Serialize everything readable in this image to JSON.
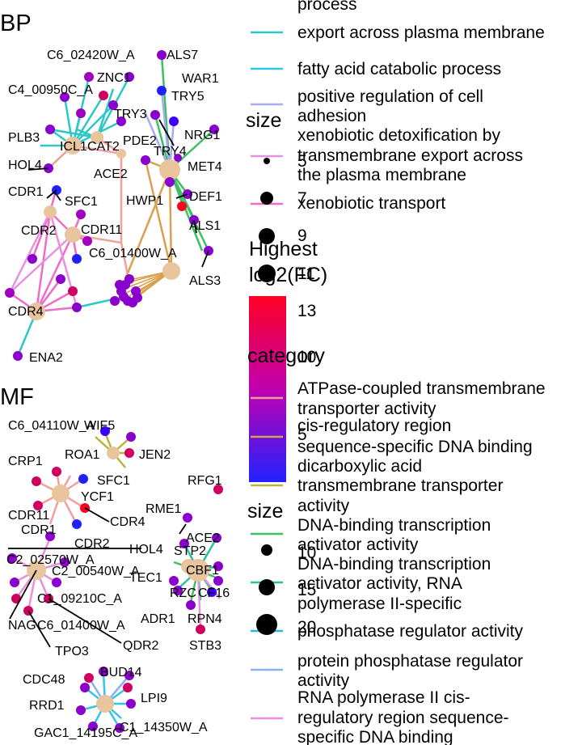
{
  "panels": {
    "bp": "BP",
    "mf": "MF"
  },
  "bp_nodes": {
    "c6_02420w": "C6_02420W_A",
    "als7": "ALS7",
    "c4_00950c": "C4_00950C_A",
    "znc1": "ZNC1",
    "war1": "WAR1",
    "try5": "TRY5",
    "try3": "TRY3",
    "plb3": "PLB3",
    "icl1": "ICL1",
    "cat2": "CAT2",
    "pde2": "PDE2",
    "nrg1": "NRG1",
    "try4": "TRY4",
    "hol4": "HOL4",
    "ace2": "ACE2",
    "met4": "MET4",
    "cdr1": "CDR1",
    "sfc1": "SFC1",
    "hwp1": "HWP1",
    "def1": "DEF1",
    "als1": "ALS1",
    "cdr2": "CDR2",
    "cdr11": "CDR11",
    "c6_01400w": "C6_01400W_A",
    "als3": "ALS3",
    "cdr4": "CDR4",
    "ena2": "ENA2"
  },
  "mf_nodes": {
    "c6_04110w": "C6_04110W_A",
    "wif5": "WIF5",
    "roa1": "ROA1",
    "jen2": "JEN2",
    "crp1": "CRP1",
    "sfc1": "SFC1",
    "ycf1": "YCF1",
    "rfg1": "RFG1",
    "cdr4": "CDR4",
    "cdr11": "CDR11",
    "rme1": "RME1",
    "cdr1": "CDR1",
    "ace2": "ACE2",
    "cdr2": "CDR2",
    "hol4": "HOL4",
    "stp2": "STP2",
    "c2_02570w": "C2_02570W_A",
    "cbf1": "CBF1",
    "c2_00540w": "C2_00540W_A",
    "tec1": "TEC1",
    "rzc": "RZC",
    "cf16": "CF16",
    "c1_09210c": "C1_09210C_A",
    "adr1": "ADR1",
    "rpn4": "RPN4",
    "nag": "NAG",
    "c6_01400w": "C6_01400W_A",
    "stb3": "STB3",
    "tpo3": "TPO3",
    "qdr2": "QDR2",
    "cdc48": "CDC48",
    "bud14": "BUD14",
    "lpi9": "LPI9",
    "rrd1": "RRD1",
    "gac1": "GAC1_14195C_A",
    "c1_14350w": "C1_14350W_A"
  },
  "legend": {
    "bp_category_items": [
      {
        "label_lines": [
          "process"
        ],
        "color": "#f3a099"
      },
      {
        "label_lines": [
          "export across plasma membrane"
        ],
        "color": "#2bc8c8"
      },
      {
        "label_lines": [
          "fatty acid catabolic process"
        ],
        "color": "#33c4e6"
      },
      {
        "label_lines": [
          "positive regulation of cell",
          "adhesion"
        ],
        "color": "#a6abf2"
      },
      {
        "label_lines": [
          "xenobiotic detoxification by",
          "transmembrane export across",
          "the plasma membrane"
        ],
        "color": "#e890e0"
      },
      {
        "label_lines": [
          "xenobiotic transport"
        ],
        "color": "#f06bc8"
      }
    ],
    "size_title_1": "size",
    "size_values_1": [
      "5",
      "7",
      "9",
      "11",
      "13"
    ],
    "color_title_lines": [
      "Highest",
      "log2(FC)"
    ],
    "color_ticks": [
      "10",
      "5"
    ],
    "category_title": "category",
    "mf_category_items": [
      {
        "label_lines": [
          "ATPase-coupled transmembrane",
          "transporter activity"
        ],
        "color": "#f3a099"
      },
      {
        "label_lines": [
          "cis-regulatory region",
          "sequence-specific DNA binding"
        ],
        "color": "#d9a050"
      },
      {
        "label_lines": [
          "dicarboxylic acid",
          "transmembrane transporter",
          "activity"
        ],
        "color": "#b9b43c"
      },
      {
        "label_lines": [
          "DNA-binding transcription",
          "activator activity"
        ],
        "color": "#3cc060"
      },
      {
        "label_lines": [
          "DNA-binding transcription",
          "activator activity, RNA",
          "polymerase II-specific"
        ],
        "color": "#2bc09a"
      },
      {
        "label_lines": [
          "phosphatase regulator activity"
        ],
        "color": "#2bb8d6"
      },
      {
        "label_lines": [
          "protein phosphatase regulator",
          "activity"
        ],
        "color": "#8ab0f2"
      },
      {
        "label_lines": [
          "RNA polymerase II cis-",
          "regulatory region sequence-",
          "specific DNA binding"
        ],
        "color": "#e890e0"
      }
    ],
    "size_title_2": "size",
    "size_values_2": [
      "10",
      "15",
      "20"
    ]
  }
}
